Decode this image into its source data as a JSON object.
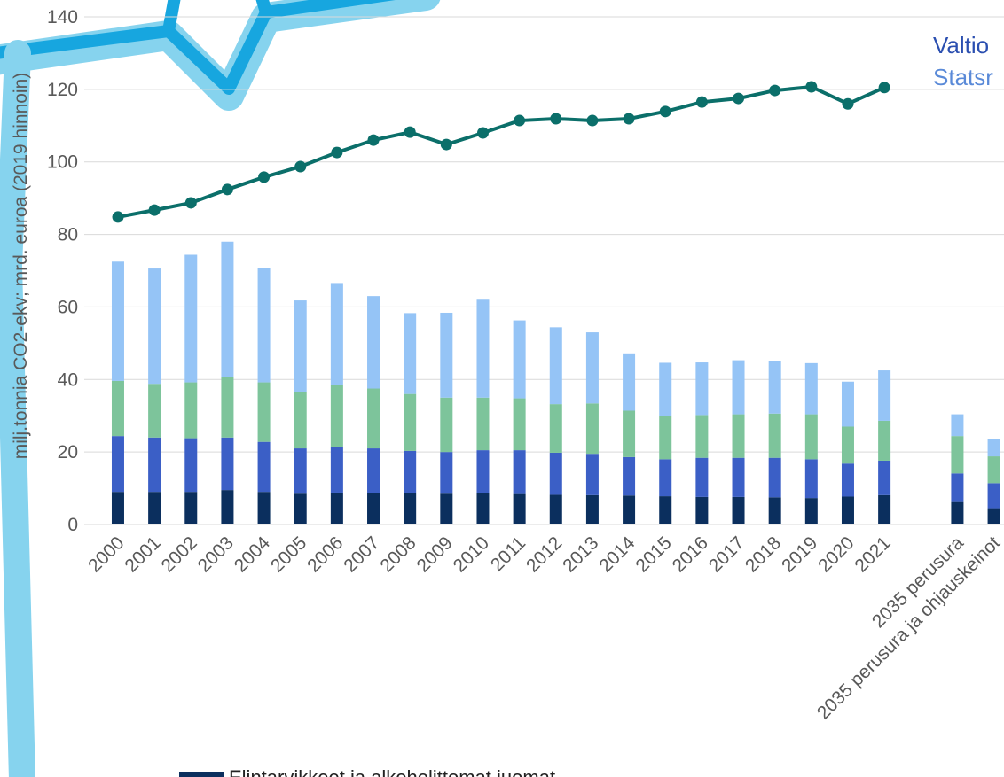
{
  "chart_data": {
    "type": "bar",
    "y_label": "milj.tonnia CO2-ekv; mrd. euroa (2019 hinnoin)",
    "categories": [
      "2000",
      "2001",
      "2002",
      "2003",
      "2004",
      "2005",
      "2006",
      "2007",
      "2008",
      "2009",
      "2010",
      "2011",
      "2012",
      "2013",
      "2014",
      "2015",
      "2016",
      "2017",
      "2018",
      "2019",
      "2020",
      "2021",
      null,
      "2035 perusura",
      "2035 perusura ja ohjauskeinot"
    ],
    "series": [
      {
        "name": "Elintarvikkeet ja alkoholittomat juomat",
        "color": "#0b2f5e",
        "values": [
          9,
          9,
          9,
          9.5,
          9,
          8.5,
          8.8,
          8.7,
          8.6,
          8.5,
          8.7,
          8.4,
          8.2,
          8.1,
          8,
          7.8,
          7.6,
          7.6,
          7.5,
          7.3,
          7.7,
          8.1,
          null,
          6.2,
          4.5
        ]
      },
      {
        "color": "#3b5fc6",
        "values": [
          15.4,
          15,
          14.8,
          14.5,
          13.8,
          12.5,
          12.7,
          12.3,
          11.7,
          11.5,
          11.8,
          12.1,
          11.6,
          11.4,
          10.6,
          10.2,
          10.8,
          10.8,
          10.9,
          10.7,
          9.1,
          9.5,
          null,
          7.9,
          6.9
        ]
      },
      {
        "color": "#7dc49b",
        "values": [
          15.2,
          14.8,
          15.4,
          16.8,
          16.4,
          15.6,
          17,
          16.5,
          15.7,
          15,
          14.5,
          14.3,
          13.4,
          13.9,
          12.8,
          12,
          11.8,
          12,
          12.2,
          12.4,
          10.2,
          11,
          null,
          10.3,
          7.4
        ]
      },
      {
        "color": "#95c4f6",
        "values": [
          32.9,
          31.8,
          35.2,
          37.2,
          31.6,
          25.2,
          28.1,
          25.5,
          22.3,
          23.4,
          27,
          21.5,
          21.2,
          19.6,
          15.8,
          14.6,
          14.5,
          14.9,
          14.4,
          14.1,
          12.4,
          13.9,
          null,
          6,
          4.7
        ]
      },
      {
        "type": "line",
        "color": "#0b6f6a",
        "values": [
          84.8,
          86.7,
          88.7,
          92.4,
          95.8,
          98.7,
          102.6,
          106,
          108.2,
          104.8,
          108,
          111.4,
          111.9,
          111.4,
          111.9,
          113.9,
          116.5,
          117.5,
          119.7,
          120.7,
          116,
          120.5,
          null,
          null,
          null
        ]
      }
    ],
    "ylim": [
      0,
      140
    ],
    "yticks": [
      0,
      20,
      40,
      60,
      80,
      100,
      120,
      140
    ],
    "grid": true,
    "logo": {
      "line1": "Valtio",
      "line2": "Statsr"
    }
  }
}
